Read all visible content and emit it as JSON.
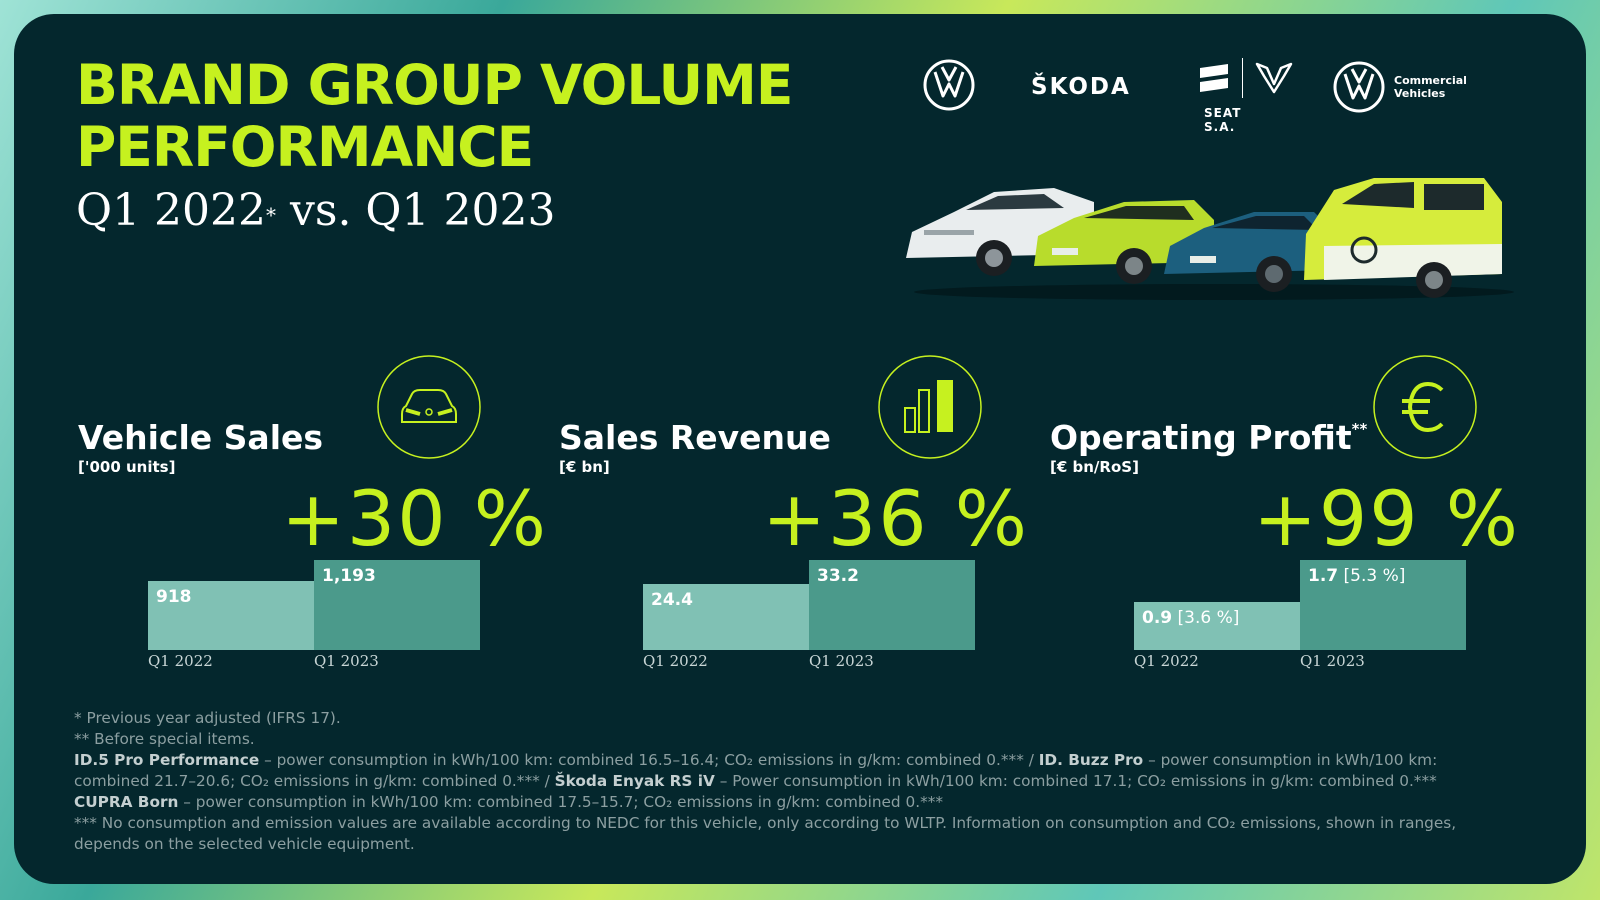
{
  "header": {
    "title_line1": "BRAND GROUP VOLUME",
    "title_line2": "PERFORMANCE",
    "subtitle_a": "Q1 2022",
    "subtitle_mark": "*",
    "subtitle_b": " vs. Q1 2023"
  },
  "logos": {
    "skoda": "ŠKODA",
    "seat": "SEAT S.A.",
    "cv_line1": "Commercial",
    "cv_line2": "Vehicles"
  },
  "colors": {
    "accent": "#c6f11f",
    "background": "#04272d",
    "bar_prev": "#80c1b4",
    "bar_curr": "#4b9a8b"
  },
  "chart_data": [
    {
      "type": "bar",
      "title": "Vehicle Sales",
      "title_mark": "",
      "unit": "['000 units]",
      "icon": "car-front-icon",
      "change": "+30 %",
      "categories": [
        "Q1 2022",
        "Q1 2023"
      ],
      "values": [
        918,
        1193
      ],
      "value_labels": [
        "918",
        "1,193"
      ],
      "ros_labels": [
        "",
        ""
      ]
    },
    {
      "type": "bar",
      "title": "Sales Revenue",
      "title_mark": "",
      "unit": "[€ bn]",
      "icon": "bar-chart-icon",
      "change": "+36 %",
      "categories": [
        "Q1 2022",
        "Q1 2023"
      ],
      "values": [
        24.4,
        33.2
      ],
      "value_labels": [
        "24.4",
        "33.2"
      ],
      "ros_labels": [
        "",
        ""
      ]
    },
    {
      "type": "bar",
      "title": "Operating Profit",
      "title_mark": "**",
      "unit": "[€ bn/RoS]",
      "icon": "euro-icon",
      "change": "+99 %",
      "categories": [
        "Q1 2022",
        "Q1 2023"
      ],
      "values": [
        0.9,
        1.7
      ],
      "value_labels": [
        "0.9",
        "1.7"
      ],
      "ros_labels": [
        "[3.6 %]",
        "[5.3 %]"
      ]
    }
  ],
  "footnotes": {
    "line1": "* Previous year adjusted (IFRS 17).",
    "line2": "** Before special items.",
    "id5_name": "ID.5 Pro Performance",
    "id5_text": " – power consumption in kWh/100 km: combined 16.5–16.4; CO₂ emissions in g/km: combined 0.*** / ",
    "buzz_name": "ID. Buzz Pro",
    "buzz_text": " – power consumption in kWh/100 km: combined 21.7–20.6; CO₂ emissions in g/km: combined 0.*** / ",
    "enyak_name": "Škoda Enyak RS iV",
    "enyak_text": " – Power consumption in kWh/100 km: combined 17.1; CO₂ emissions in g/km: combined 0.***",
    "cupra_name": "CUPRA Born",
    "cupra_text": " – power consumption in kWh/100 km: combined 17.5–15.7; CO₂ emissions in g/km: combined 0.***",
    "line_last": "*** No consumption and emission values are available according to NEDC for this vehicle, only according to WLTP. Information on consumption and CO₂ emissions, shown in ranges, depends on the selected vehicle equipment."
  }
}
